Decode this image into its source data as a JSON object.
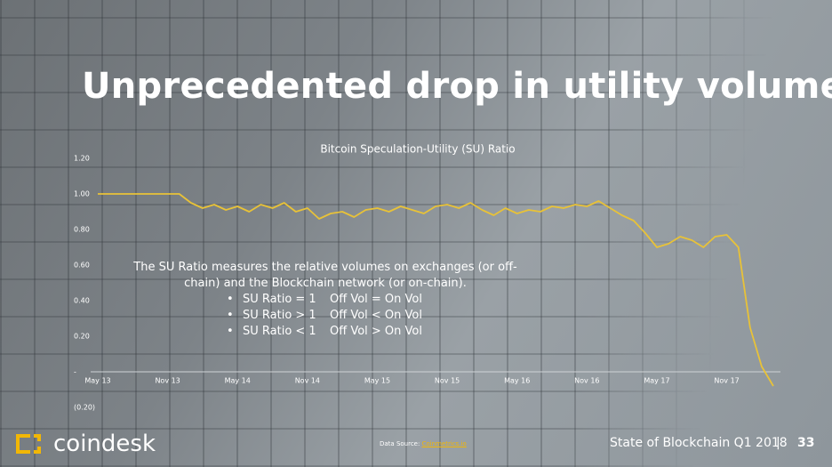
{
  "title": "Unprecedented drop in utility volume",
  "title_mark": ".",
  "annotation": {
    "text": "The SU Ratio measures the relative volumes on exchanges (or off-chain) and the Blockchain network (or on-chain).",
    "bullets": [
      [
        "SU Ratio = 1",
        "Off Vol = On Vol"
      ],
      [
        "SU Ratio > 1",
        "Off Vol < On Vol"
      ],
      [
        "SU Ratio < 1",
        "Off Vol > On Vol"
      ]
    ]
  },
  "source": {
    "label": "Data Source:",
    "link": "Coinmetrics.io"
  },
  "footer": {
    "brand": "coindesk",
    "report": "State of Blockchain Q1 2018",
    "separator": "|",
    "page": "33"
  },
  "chart_data": {
    "type": "line",
    "title": "Bitcoin Speculation-Utility (SU) Ratio",
    "categories": [
      "May 13",
      null,
      null,
      null,
      null,
      null,
      "Nov 13",
      null,
      null,
      null,
      null,
      null,
      "May 14",
      null,
      null,
      null,
      null,
      null,
      "Nov 14",
      null,
      null,
      null,
      null,
      null,
      "May 15",
      null,
      null,
      null,
      null,
      null,
      "Nov 15",
      null,
      null,
      null,
      null,
      null,
      "May 16",
      null,
      null,
      null,
      null,
      null,
      "Nov 16",
      null,
      null,
      null,
      null,
      null,
      "May 17",
      null,
      null,
      null,
      null,
      null,
      "Nov 17",
      null,
      null,
      null,
      null
    ],
    "series": [
      {
        "name": "SU Ratio",
        "color": "#e8c238",
        "values": [
          1,
          1,
          1,
          1,
          1,
          1,
          1,
          1,
          0.95,
          0.92,
          0.94,
          0.91,
          0.93,
          0.9,
          0.94,
          0.92,
          0.95,
          0.9,
          0.92,
          0.86,
          0.89,
          0.9,
          0.87,
          0.91,
          0.92,
          0.9,
          0.93,
          0.91,
          0.89,
          0.93,
          0.94,
          0.92,
          0.95,
          0.91,
          0.88,
          0.92,
          0.89,
          0.91,
          0.9,
          0.93,
          0.92,
          0.94,
          0.93,
          0.96,
          0.92,
          0.88,
          0.85,
          0.78,
          0.7,
          0.72,
          0.76,
          0.74,
          0.7,
          0.76,
          0.77,
          0.7,
          0.25,
          0.03,
          -0.08
        ]
      }
    ],
    "ylim": [
      -0.2,
      1.2
    ],
    "yticks": [
      {
        "value": -0.2,
        "label": "(0.20)"
      },
      {
        "value": 0,
        "label": "-"
      },
      {
        "value": 0.2,
        "label": "0.20"
      },
      {
        "value": 0.4,
        "label": "0.40"
      },
      {
        "value": 0.6,
        "label": "0.60"
      },
      {
        "value": 0.8,
        "label": "0.80"
      },
      {
        "value": 1,
        "label": "1.00"
      },
      {
        "value": 1.2,
        "label": "1.20"
      }
    ]
  }
}
